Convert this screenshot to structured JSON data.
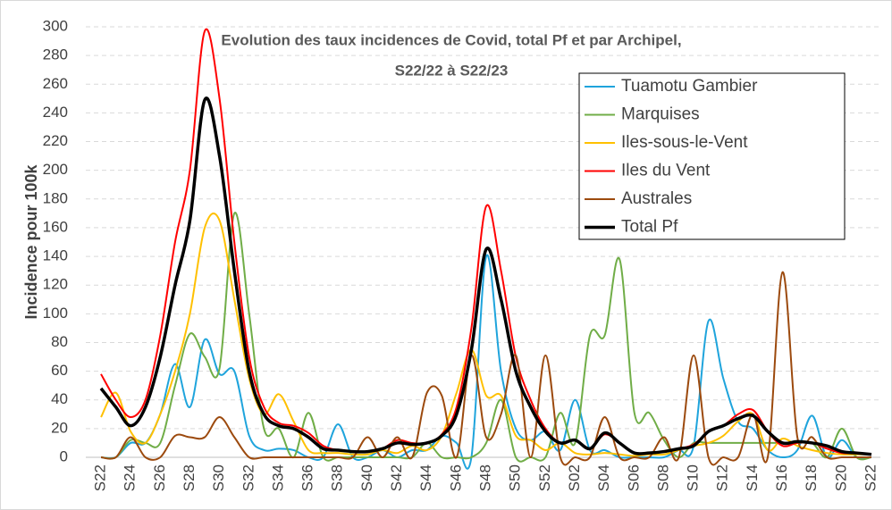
{
  "chart_data": {
    "type": "line",
    "title": "Evolution des taux incidences de Covid, total  Pf et par Archipel,",
    "subtitle": "S22/22 à S22/23",
    "y_label": "Incidence pour 100k",
    "categories": [
      "S22",
      null,
      "S24",
      null,
      "S26",
      null,
      "S28",
      null,
      "S30",
      null,
      "S32",
      null,
      "S34",
      null,
      "S36",
      null,
      "S38",
      null,
      "S40",
      null,
      "S42",
      null,
      "S44",
      null,
      "S46",
      null,
      "S48",
      null,
      "S50",
      null,
      "S52",
      null,
      "S02",
      null,
      "S04",
      null,
      "S06",
      null,
      "S08",
      null,
      "S10",
      null,
      "S12",
      null,
      "S14",
      null,
      "S16",
      null,
      "S18",
      null,
      "S20",
      null,
      "S22"
    ],
    "ylim": [
      0,
      300
    ],
    "yticks": [
      0,
      20,
      40,
      60,
      80,
      100,
      120,
      140,
      160,
      180,
      200,
      220,
      240,
      260,
      280,
      300
    ],
    "grid": true,
    "legend": "upper right",
    "series": [
      {
        "name": "Tuamotu Gambier",
        "color": "#1fa4dc",
        "width": 2,
        "values": [
          0,
          0,
          10,
          10,
          30,
          65,
          35,
          82,
          58,
          60,
          15,
          5,
          6,
          5,
          0,
          0,
          23,
          0,
          0,
          5,
          0,
          5,
          5,
          15,
          10,
          0,
          140,
          60,
          20,
          12,
          18,
          5,
          40,
          5,
          5,
          0,
          0,
          0,
          0,
          5,
          8,
          95,
          55,
          25,
          20,
          5,
          0,
          5,
          29,
          0,
          12,
          0,
          0
        ]
      },
      {
        "name": "Marquises",
        "color": "#70ad47",
        "width": 2,
        "values": [
          0,
          0,
          12,
          10,
          10,
          50,
          86,
          70,
          62,
          170,
          100,
          20,
          20,
          0,
          31,
          0,
          0,
          0,
          0,
          0,
          0,
          0,
          10,
          0,
          0,
          0,
          10,
          40,
          0,
          0,
          0,
          31,
          10,
          85,
          85,
          138,
          31,
          31,
          12,
          0,
          10,
          10,
          10,
          10,
          10,
          10,
          10,
          10,
          10,
          0,
          20,
          0,
          0
        ]
      },
      {
        "name": "Iles-sous-le-Vent",
        "color": "#ffc000",
        "width": 2,
        "values": [
          28,
          45,
          18,
          10,
          30,
          60,
          100,
          160,
          165,
          110,
          55,
          30,
          44,
          25,
          5,
          3,
          3,
          2,
          2,
          5,
          3,
          8,
          5,
          15,
          45,
          75,
          43,
          43,
          15,
          12,
          5,
          10,
          3,
          2,
          3,
          2,
          1,
          2,
          2,
          5,
          8,
          10,
          15,
          25,
          30,
          5,
          13,
          8,
          5,
          3,
          2,
          2,
          2
        ]
      },
      {
        "name": "Iles du Vent",
        "color": "#ff0000",
        "width": 2,
        "values": [
          58,
          40,
          28,
          40,
          85,
          150,
          200,
          297,
          250,
          150,
          70,
          35,
          24,
          22,
          17,
          8,
          5,
          4,
          4,
          6,
          12,
          10,
          10,
          16,
          35,
          90,
          175,
          130,
          70,
          40,
          20,
          10,
          12,
          6,
          16,
          10,
          3,
          3,
          4,
          6,
          9,
          18,
          22,
          30,
          33,
          18,
          8,
          10,
          10,
          6,
          3,
          3,
          2
        ]
      },
      {
        "name": "Australes",
        "color": "#9c4a0e",
        "width": 2,
        "values": [
          0,
          0,
          14,
          0,
          0,
          15,
          14,
          14,
          28,
          14,
          0,
          0,
          0,
          0,
          0,
          0,
          0,
          0,
          14,
          0,
          14,
          0,
          45,
          43,
          0,
          71,
          14,
          30,
          71,
          0,
          71,
          0,
          0,
          0,
          28,
          0,
          0,
          0,
          14,
          0,
          71,
          0,
          0,
          0,
          30,
          0,
          129,
          14,
          14,
          0,
          0,
          0,
          0
        ]
      },
      {
        "name": "Total Pf",
        "color": "#000000",
        "width": 3.5,
        "values": [
          48,
          35,
          22,
          35,
          70,
          120,
          165,
          249,
          210,
          130,
          60,
          30,
          22,
          20,
          14,
          6,
          5,
          4,
          4,
          6,
          10,
          9,
          10,
          15,
          30,
          75,
          145,
          110,
          60,
          35,
          18,
          10,
          12,
          6,
          17,
          10,
          3,
          3,
          4,
          6,
          8,
          18,
          22,
          27,
          29,
          18,
          10,
          11,
          10,
          8,
          4,
          3,
          2
        ]
      }
    ]
  }
}
